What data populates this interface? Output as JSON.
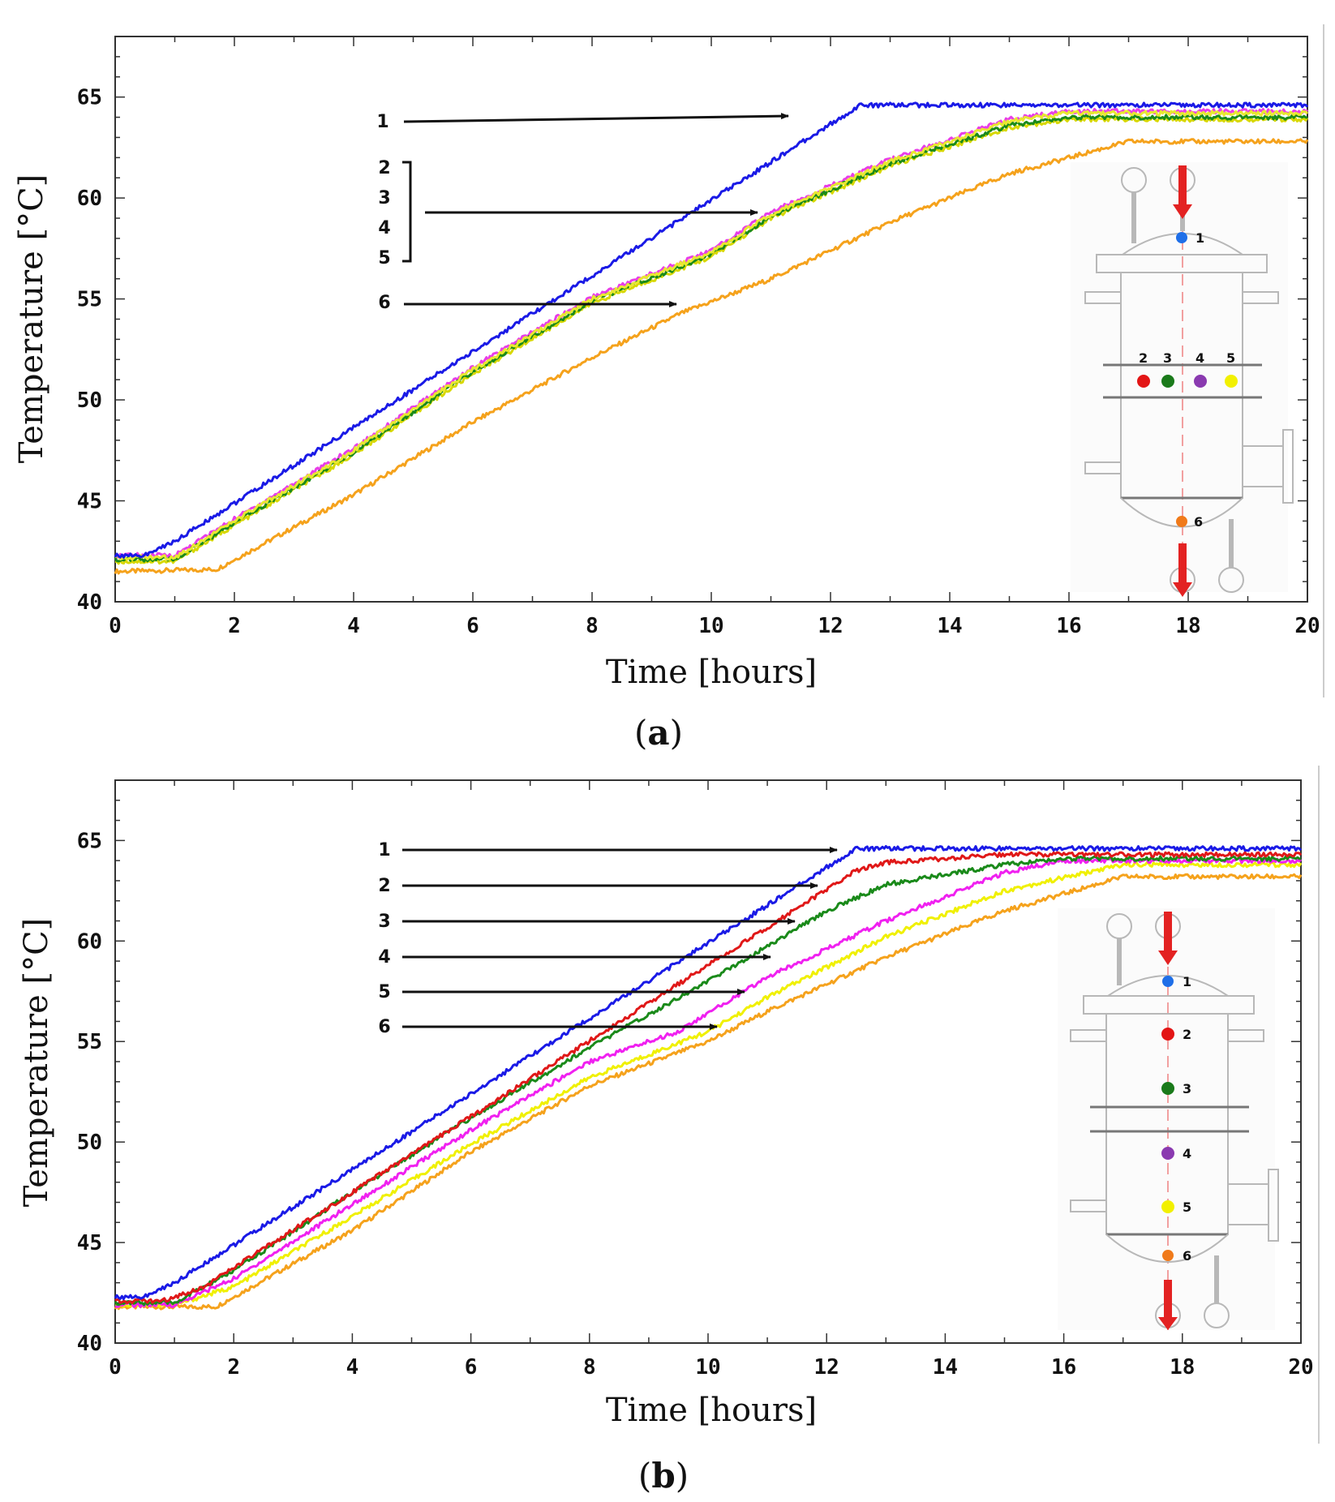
{
  "chart_data": [
    {
      "panel": "a",
      "type": "line",
      "label_open": "(",
      "label_letter": "a",
      "label_close": ")",
      "xlabel": "Time [hours]",
      "ylabel": "Temperature [°C]",
      "xlim": [
        0,
        20
      ],
      "ylim": [
        40,
        68
      ],
      "xticks": [
        "0",
        "2",
        "4",
        "6",
        "8",
        "10",
        "12",
        "14",
        "16",
        "18",
        "20"
      ],
      "yticks": [
        "40",
        "45",
        "50",
        "55",
        "60",
        "65"
      ],
      "series": [
        {
          "name": "1",
          "color": "#1a1ae6",
          "x": [
            0,
            0.5,
            1,
            12.5,
            20
          ],
          "y": [
            42.3,
            42.3,
            43.0,
            64.6,
            64.6
          ]
        },
        {
          "name": "2",
          "color": "#e8e830",
          "x": [
            0,
            1,
            2,
            4,
            6,
            8,
            10,
            11,
            13,
            15,
            16,
            20
          ],
          "y": [
            42.2,
            42.2,
            44.0,
            47.5,
            51.5,
            55.0,
            57.3,
            59.2,
            61.8,
            63.8,
            64.2,
            64.2
          ]
        },
        {
          "name": "3",
          "color": "#1a8a1a",
          "x": [
            0,
            1,
            2,
            4,
            6,
            8,
            10,
            11,
            13,
            15,
            16,
            20
          ],
          "y": [
            42.1,
            42.1,
            43.9,
            47.4,
            51.4,
            54.9,
            57.2,
            59.1,
            61.7,
            63.6,
            64.0,
            64.0
          ]
        },
        {
          "name": "4",
          "color": "#e83ee8",
          "x": [
            0,
            1,
            2,
            4,
            6,
            8,
            10,
            11,
            13,
            15,
            16,
            20
          ],
          "y": [
            42.3,
            42.3,
            44.1,
            47.6,
            51.6,
            55.1,
            57.4,
            59.3,
            61.9,
            63.9,
            64.3,
            64.3
          ]
        },
        {
          "name": "5",
          "color": "#d8d800",
          "x": [
            0,
            1,
            2,
            4,
            6,
            8,
            10,
            11,
            13,
            15,
            16,
            20
          ],
          "y": [
            42.0,
            42.0,
            43.8,
            47.3,
            51.3,
            54.8,
            57.1,
            59.0,
            61.6,
            63.5,
            63.9,
            63.9
          ]
        },
        {
          "name": "6",
          "color": "#f5a21c",
          "x": [
            0,
            1.7,
            4,
            6,
            8,
            9.5,
            11,
            13,
            15,
            17,
            20
          ],
          "y": [
            41.5,
            41.6,
            45.3,
            48.9,
            52.1,
            54.3,
            56.0,
            58.8,
            61.2,
            62.8,
            62.8
          ]
        }
      ],
      "annotations": [
        {
          "text": "1"
        },
        {
          "text": "2"
        },
        {
          "text": "3"
        },
        {
          "text": "4"
        },
        {
          "text": "5"
        },
        {
          "text": "6"
        }
      ],
      "diagram_labels": [
        "1",
        "2",
        "3",
        "4",
        "5",
        "6"
      ]
    },
    {
      "panel": "b",
      "type": "line",
      "label_open": "(",
      "label_letter": "b",
      "label_close": ")",
      "xlabel": "Time [hours]",
      "ylabel": "Temperature [°C]",
      "xlim": [
        0,
        20
      ],
      "ylim": [
        40,
        68
      ],
      "xticks": [
        "0",
        "2",
        "4",
        "6",
        "8",
        "10",
        "12",
        "14",
        "16",
        "18",
        "20"
      ],
      "yticks": [
        "40",
        "45",
        "50",
        "55",
        "60",
        "65"
      ],
      "series": [
        {
          "name": "1",
          "color": "#1a1ae6",
          "x": [
            0,
            0.5,
            1,
            12.5,
            20
          ],
          "y": [
            42.3,
            42.3,
            43.0,
            64.6,
            64.6
          ]
        },
        {
          "name": "2",
          "color": "#e01818",
          "x": [
            0,
            0.8,
            1.5,
            12.5,
            13,
            15,
            20
          ],
          "y": [
            42.1,
            42.1,
            42.8,
            63.5,
            63.9,
            64.3,
            64.3
          ]
        },
        {
          "name": "3",
          "color": "#1a8a1a",
          "x": [
            0,
            1,
            2,
            4,
            6,
            8,
            10,
            12,
            13,
            15,
            16,
            20
          ],
          "y": [
            42.0,
            42.0,
            43.6,
            47.5,
            51.2,
            54.7,
            58.0,
            61.5,
            62.8,
            63.8,
            64.1,
            64.1
          ]
        },
        {
          "name": "4",
          "color": "#f020f0",
          "x": [
            0,
            1,
            2,
            4,
            6,
            8,
            9.5,
            11,
            13,
            15,
            16,
            20
          ],
          "y": [
            41.9,
            41.9,
            43.2,
            46.9,
            50.6,
            54.0,
            55.5,
            58.2,
            61.0,
            63.4,
            64.0,
            64.0
          ]
        },
        {
          "name": "5",
          "color": "#f0f000",
          "x": [
            0,
            1,
            2,
            4,
            6,
            8,
            10,
            11,
            13,
            15,
            17,
            20
          ],
          "y": [
            41.9,
            41.9,
            42.8,
            46.3,
            49.9,
            53.2,
            55.5,
            57.2,
            60.2,
            62.5,
            63.8,
            63.8
          ]
        },
        {
          "name": "6",
          "color": "#f5a21c",
          "x": [
            0,
            1.7,
            4,
            6,
            8,
            10,
            11,
            13,
            15,
            17,
            20
          ],
          "y": [
            41.8,
            41.8,
            45.6,
            49.5,
            52.8,
            55.0,
            56.5,
            59.2,
            61.5,
            63.2,
            63.2
          ]
        }
      ],
      "annotations": [
        {
          "text": "1"
        },
        {
          "text": "2"
        },
        {
          "text": "3"
        },
        {
          "text": "4"
        },
        {
          "text": "5"
        },
        {
          "text": "6"
        }
      ],
      "diagram_labels": [
        "1",
        "2",
        "3",
        "4",
        "5",
        "6"
      ]
    }
  ]
}
